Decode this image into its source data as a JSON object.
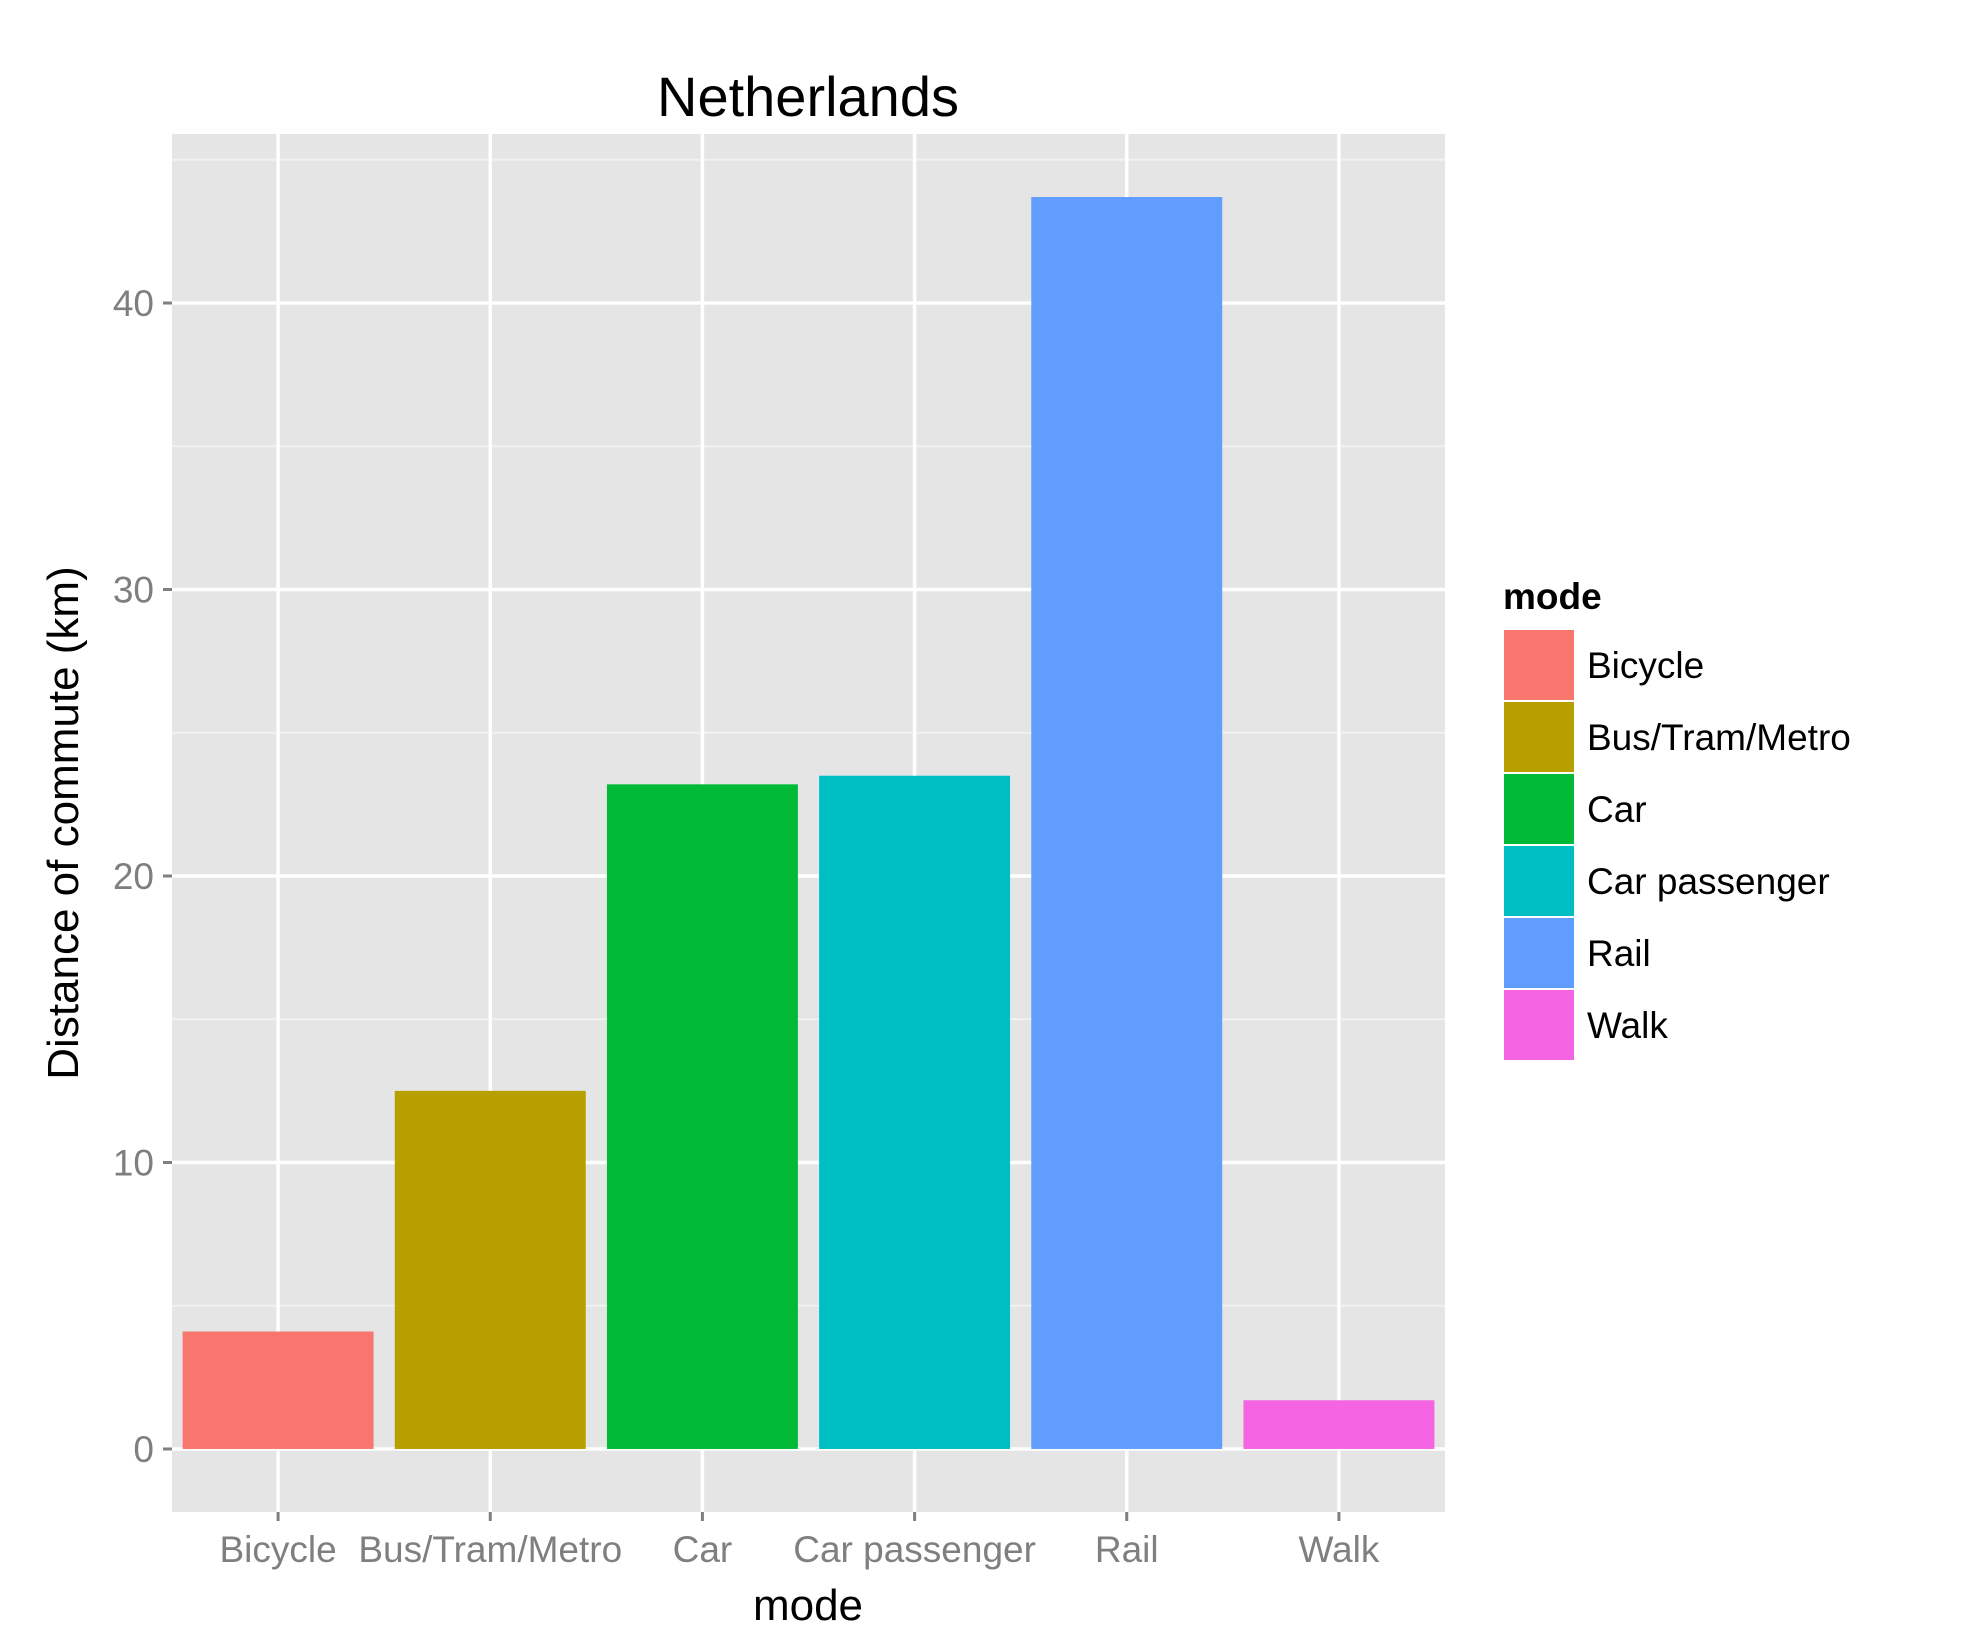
{
  "chart_data": {
    "type": "bar",
    "title": "Netherlands",
    "xlabel": "mode",
    "ylabel": "Distance of commute (km)",
    "categories": [
      "Bicycle",
      "Bus/Tram/Metro",
      "Car",
      "Car passenger",
      "Rail",
      "Walk"
    ],
    "values": [
      4.1,
      12.5,
      23.2,
      23.5,
      43.7,
      1.7
    ],
    "colors": [
      "#F8766D",
      "#B79F00",
      "#00BA38",
      "#00BFC4",
      "#619CFF",
      "#F564E3"
    ],
    "ylim": [
      -2.2,
      45.9
    ],
    "yticks": [
      0,
      10,
      20,
      30,
      40
    ],
    "grid": true,
    "panel_background": "#E5E5E5",
    "legend": {
      "title": "mode",
      "position": "right",
      "entries": [
        "Bicycle",
        "Bus/Tram/Metro",
        "Car",
        "Car passenger",
        "Rail",
        "Walk"
      ]
    }
  }
}
